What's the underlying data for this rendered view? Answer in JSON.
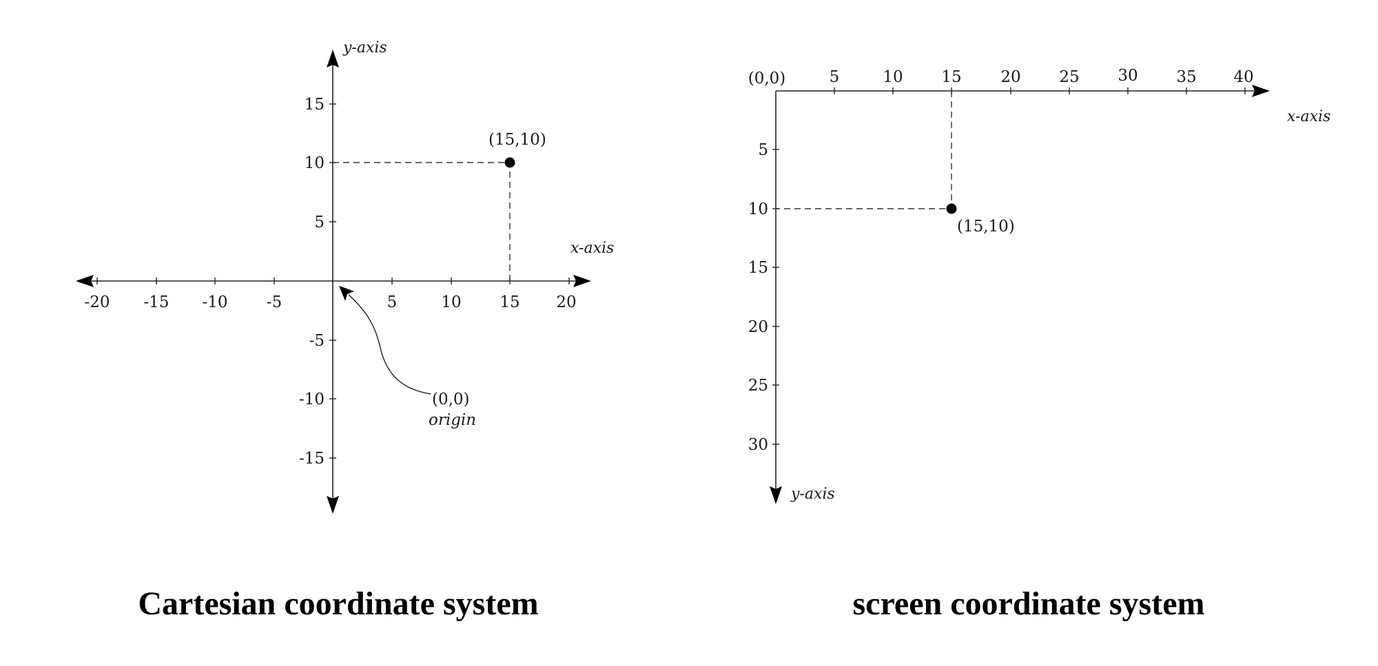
{
  "cartesian": {
    "caption": "Cartesian coordinate system",
    "x_axis_name": "x-axis",
    "y_axis_name": "y-axis",
    "x_ticks": [
      "-20",
      "-15",
      "-10",
      "-5",
      "5",
      "10",
      "15",
      "20"
    ],
    "y_ticks": [
      "15",
      "10",
      "5",
      "-5",
      "-10",
      "-15"
    ],
    "point_label": "(15,10)",
    "origin_coords": "(0,0)",
    "origin_label": "origin"
  },
  "screen": {
    "caption": "screen coordinate system",
    "x_axis_name": "x-axis",
    "y_axis_name": "y-axis",
    "origin_label": "(0,0)",
    "x_ticks": [
      "5",
      "10",
      "15",
      "20",
      "25",
      "30",
      "35",
      "40"
    ],
    "y_ticks": [
      "5",
      "10",
      "15",
      "20",
      "25",
      "30"
    ],
    "point_label": "(15,10)"
  },
  "colors": {
    "ink": "#000000",
    "background": "#ffffff"
  }
}
